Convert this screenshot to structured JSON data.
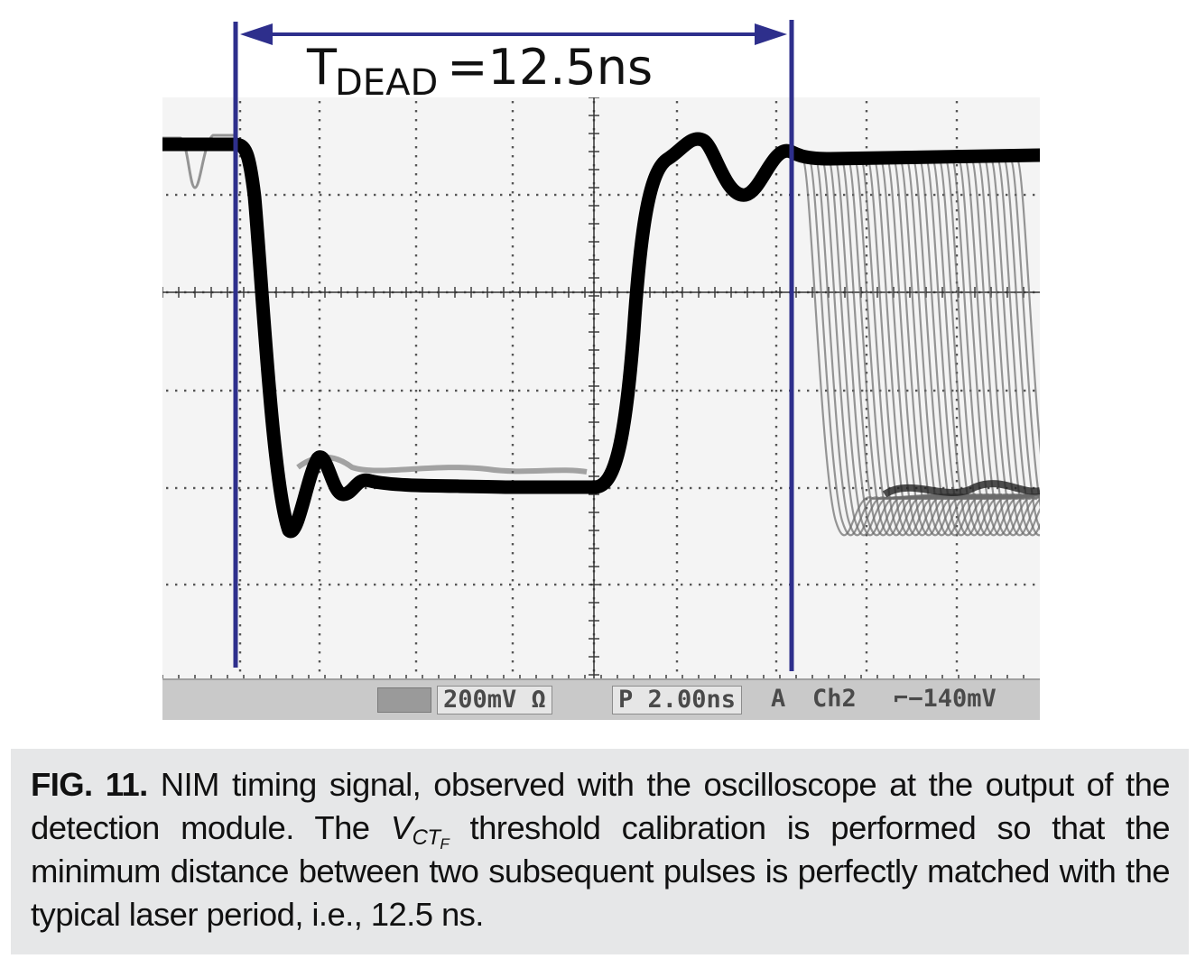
{
  "figure": {
    "annotation": {
      "label_main": "T",
      "label_sub": "DEAD",
      "label_value": "=12.5ns"
    },
    "scope": {
      "status": {
        "channel_scale": "200mV Ω",
        "timebase": "P 2.00ns",
        "trigger_mode": "A",
        "trigger_channel": "Ch2",
        "trigger_slope_icon": "falling-edge-icon",
        "trigger_level": "Ł −140mV"
      },
      "grid": {
        "divisions_x": 9,
        "divisions_y": 6
      },
      "trace_color": "#000000",
      "persistence_color": "#6b6b6b",
      "marker_color": "#2e2f8c"
    }
  },
  "caption": {
    "fig_num": "FIG. 11.",
    "text_1": " NIM timing signal, observed with the oscilloscope at the output of the detection module. The ",
    "vct_main": "V",
    "vct_sub": "CT",
    "vct_subsub": "F",
    "text_2": " threshold calibration is performed so that the minimum distance between two subsequent pulses is perfectly matched with the typical laser period, i.e., 12.5 ns."
  }
}
